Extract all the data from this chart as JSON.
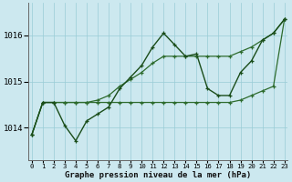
{
  "title": "Graphe pression niveau de la mer (hPa)",
  "xlabel_ticks": [
    "0",
    "1",
    "2",
    "3",
    "4",
    "5",
    "6",
    "7",
    "8",
    "9",
    "10",
    "11",
    "12",
    "13",
    "14",
    "15",
    "16",
    "17",
    "18",
    "19",
    "20",
    "21",
    "22",
    "23"
  ],
  "ylim": [
    1013.3,
    1016.7
  ],
  "yticks": [
    1014,
    1015,
    1016
  ],
  "background_color": "#cce8ef",
  "grid_color": "#99ccd6",
  "line_dark": "#1a4d1a",
  "line_med": "#2d6b2d",
  "hours": [
    0,
    1,
    2,
    3,
    4,
    5,
    6,
    7,
    8,
    9,
    10,
    11,
    12,
    13,
    14,
    15,
    16,
    17,
    18,
    19,
    20,
    21,
    22,
    23
  ],
  "pressure_detailed": [
    1013.85,
    1014.55,
    1014.55,
    1014.05,
    1013.72,
    1014.15,
    1014.3,
    1014.45,
    1014.85,
    1015.1,
    1015.35,
    1015.75,
    1016.05,
    1015.8,
    1015.55,
    1015.6,
    1014.85,
    1014.7,
    1014.7,
    1015.2,
    1015.45,
    1015.9,
    1016.05,
    1016.35
  ],
  "pressure_smooth": [
    1013.85,
    1014.55,
    1014.55,
    1014.55,
    1014.55,
    1014.55,
    1014.6,
    1014.7,
    1014.9,
    1015.05,
    1015.2,
    1015.4,
    1015.55,
    1015.55,
    1015.55,
    1015.55,
    1015.55,
    1015.55,
    1015.55,
    1015.65,
    1015.75,
    1015.9,
    1016.05,
    1016.35
  ],
  "pressure_flat": [
    1013.85,
    1014.55,
    1014.55,
    1014.55,
    1014.55,
    1014.55,
    1014.55,
    1014.55,
    1014.55,
    1014.55,
    1014.55,
    1014.55,
    1014.55,
    1014.55,
    1014.55,
    1014.55,
    1014.55,
    1014.55,
    1014.55,
    1014.6,
    1014.7,
    1014.8,
    1014.9,
    1016.35
  ]
}
